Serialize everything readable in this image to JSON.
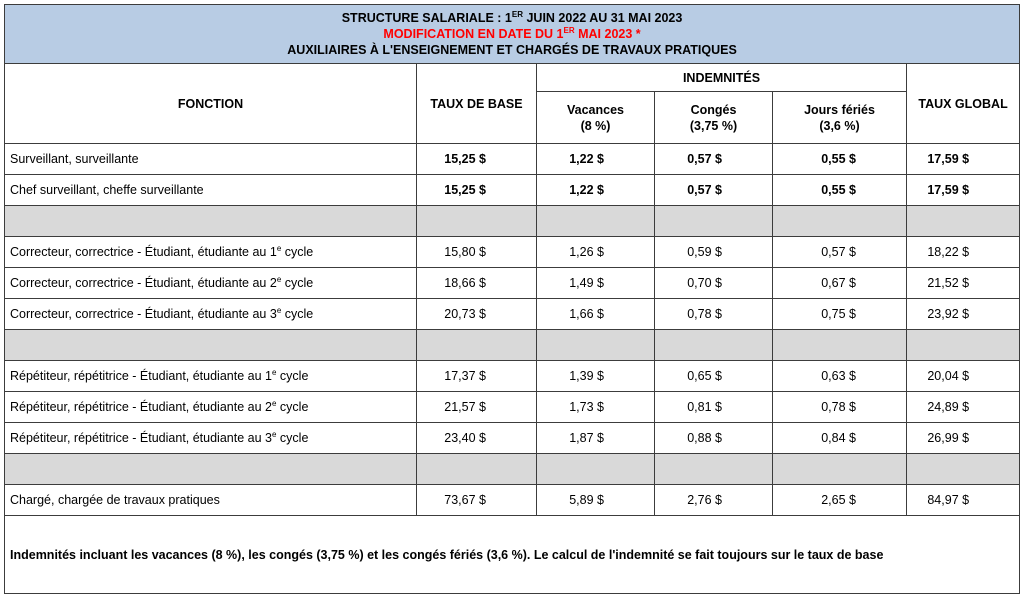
{
  "title": {
    "line1_main": "STRUCTURE SALARIALE : 1",
    "line1_sup": "ER",
    "line1_rest": " JUIN 2022 AU 31 MAI 2023",
    "line2_main": "MODIFICATION EN DATE DU 1",
    "line2_sup": "ER",
    "line2_rest": " MAI 2023 *",
    "line3": "AUXILIAIRES À L'ENSEIGNEMENT ET CHARGÉS DE TRAVAUX PRATIQUES"
  },
  "headers": {
    "fonction": "FONCTION",
    "taux_base": "TAUX DE BASE",
    "indemnites": "INDEMNITÉS",
    "vacances": "Vacances",
    "vacances_pct": "(8 %)",
    "conges": "Congés",
    "conges_pct": "(3,75 %)",
    "feries": "Jours fériés",
    "feries_pct": "(3,6 %)",
    "taux_global": "TAUX GLOBAL"
  },
  "rows": [
    {
      "fonction": "Surveillant, surveillante",
      "base": "15,25 $",
      "vacances": "1,22 $",
      "conges": "0,57 $",
      "feries": "0,55 $",
      "global": "17,59 $"
    },
    {
      "fonction": "Chef surveillant, cheffe surveillante",
      "base": "15,25 $",
      "vacances": "1,22 $",
      "conges": "0,57 $",
      "feries": "0,55 $",
      "global": "17,59 $"
    },
    {
      "fonction_main": "Correcteur, correctrice - Étudiant, étudiante au 1",
      "fonction_sup": "e",
      "fonction_rest": " cycle",
      "base": "15,80 $",
      "vacances": "1,26 $",
      "conges": "0,59 $",
      "feries": "0,57 $",
      "global": "18,22 $"
    },
    {
      "fonction_main": "Correcteur, correctrice - Étudiant, étudiante au 2",
      "fonction_sup": "e",
      "fonction_rest": " cycle",
      "base": "18,66 $",
      "vacances": "1,49 $",
      "conges": "0,70 $",
      "feries": "0,67 $",
      "global": "21,52 $"
    },
    {
      "fonction_main": "Correcteur, correctrice - Étudiant, étudiante au 3",
      "fonction_sup": "e",
      "fonction_rest": " cycle",
      "base": "20,73 $",
      "vacances": "1,66 $",
      "conges": "0,78 $",
      "feries": "0,75 $",
      "global": "23,92 $"
    },
    {
      "fonction_main": "Répétiteur, répétitrice - Étudiant, étudiante au 1",
      "fonction_sup": "e",
      "fonction_rest": " cycle",
      "base": "17,37 $",
      "vacances": "1,39 $",
      "conges": "0,65 $",
      "feries": "0,63 $",
      "global": "20,04 $"
    },
    {
      "fonction_main": "Répétiteur, répétitrice - Étudiant, étudiante au 2",
      "fonction_sup": "e",
      "fonction_rest": " cycle",
      "base": "21,57 $",
      "vacances": "1,73 $",
      "conges": "0,81 $",
      "feries": "0,78 $",
      "global": "24,89 $"
    },
    {
      "fonction_main": "Répétiteur, répétitrice - Étudiant, étudiante au 3",
      "fonction_sup": "e",
      "fonction_rest": " cycle",
      "base": "23,40 $",
      "vacances": "1,87 $",
      "conges": "0,88 $",
      "feries": "0,84 $",
      "global": "26,99 $"
    },
    {
      "fonction": "Chargé, chargée de travaux pratiques",
      "base": "73,67 $",
      "vacances": "5,89 $",
      "conges": "2,76 $",
      "feries": "2,65 $",
      "global": "84,97 $"
    }
  ],
  "colors": {
    "title_bg": "#b8cce4",
    "separator_bg": "#d9d9d9",
    "modification_text": "#ff0000"
  },
  "note": "Indemnités incluant les vacances (8 %), les congés (3,75 %) et les congés fériés (3,6 %).  Le calcul de l'indemnité se fait toujours sur le taux de base"
}
